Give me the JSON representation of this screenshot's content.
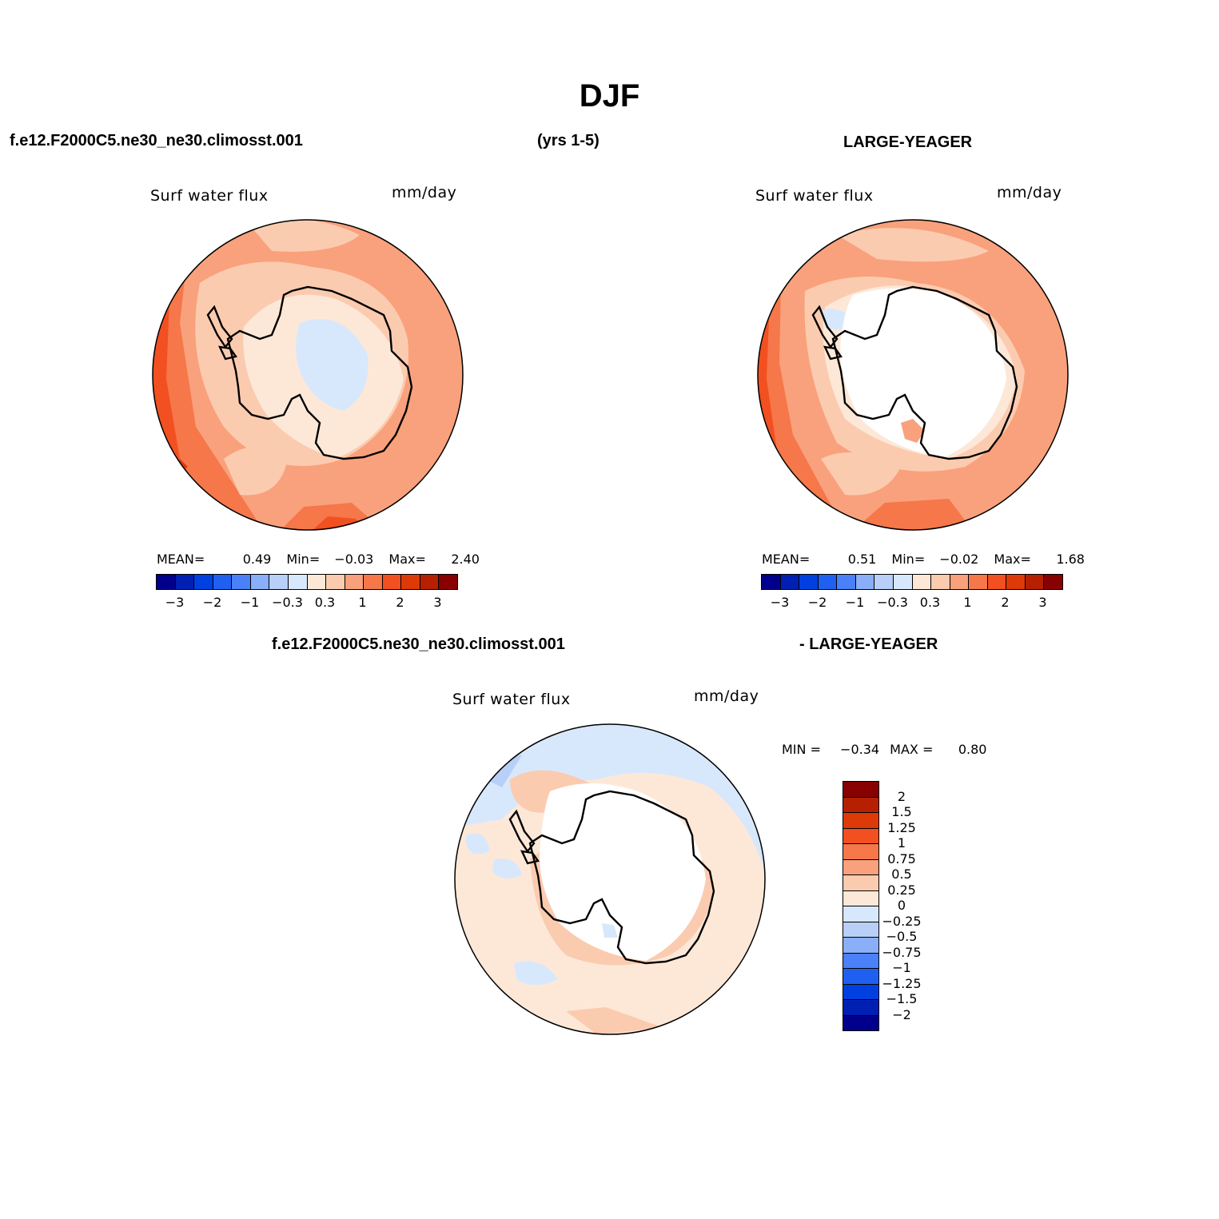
{
  "title": "DJF",
  "case_name": "f.e12.F2000C5.ne30_ne30.climosst.001",
  "years": "(yrs 1-5)",
  "obs_name": "LARGE-YEAGER",
  "diff_case": "f.e12.F2000C5.ne30_ne30.climosst.001",
  "diff_obs": "- LARGE-YEAGER",
  "colors": {
    "levels": [
      "#00008c",
      "#0020b4",
      "#0040e0",
      "#2060f0",
      "#4a80f8",
      "#8aaff8",
      "#b8cff8",
      "#d8e8fc",
      "#fde8d8",
      "#fbcbb0",
      "#f9a17c",
      "#f5774a",
      "#f25020",
      "#de3a08",
      "#b62000",
      "#880000"
    ],
    "diff_levels": [
      "#880000",
      "#b62000",
      "#de3a08",
      "#f25020",
      "#f5774a",
      "#f9a17c",
      "#fbcbb0",
      "#fde8d8",
      "#d8e8fc",
      "#b8cff8",
      "#8aaff8",
      "#4a80f8",
      "#2060f0",
      "#0040e0",
      "#0020b4",
      "#00008c"
    ]
  },
  "panels": [
    {
      "name": "Surf  water  flux",
      "units": "mm/day",
      "mean_label": "MEAN=",
      "mean": "0.49",
      "min_label": "Min=",
      "min": "−0.03",
      "max_label": "Max=",
      "max": "2.40",
      "ticks": [
        "−3",
        "−2",
        "−1",
        "−0.3",
        "0.3",
        "1",
        "2",
        "3"
      ]
    },
    {
      "name": "Surf  water  flux",
      "units": "mm/day",
      "mean_label": "MEAN=",
      "mean": "0.51",
      "min_label": "Min=",
      "min": "−0.02",
      "max_label": "Max=",
      "max": "1.68",
      "ticks": [
        "−3",
        "−2",
        "−1",
        "−0.3",
        "0.3",
        "1",
        "2",
        "3"
      ]
    },
    {
      "name": "Surf  water  flux",
      "units": "mm/day",
      "min_label": "MIN =",
      "min": "−0.34",
      "max_label": "MAX =",
      "max": "0.80",
      "ticks": [
        "2",
        "1.5",
        "1.25",
        "1",
        "0.75",
        "0.5",
        "0.25",
        "0",
        "−0.25",
        "−0.5",
        "−0.75",
        "−1",
        "−1.25",
        "−1.5",
        "−2"
      ]
    }
  ],
  "chart_data": {
    "type": "heatmap",
    "title": "DJF",
    "variable": "Surf water flux",
    "units": "mm/day",
    "season": "DJF",
    "maps": [
      {
        "label": "f.e12.F2000C5.ne30_ne30.climosst.001 (yrs 1-5)",
        "mean": 0.49,
        "min": -0.03,
        "max": 2.4,
        "contour_levels": [
          -3,
          -2.5,
          -2,
          -1.5,
          -1,
          -0.5,
          -0.3,
          0,
          0.3,
          0.5,
          1,
          1.5,
          2,
          2.5,
          3
        ]
      },
      {
        "label": "LARGE-YEAGER",
        "mean": 0.51,
        "min": -0.02,
        "max": 1.68,
        "contour_levels": [
          -3,
          -2.5,
          -2,
          -1.5,
          -1,
          -0.5,
          -0.3,
          0,
          0.3,
          0.5,
          1,
          1.5,
          2,
          2.5,
          3
        ]
      },
      {
        "label": "f.e12.F2000C5.ne30_ne30.climosst.001 - LARGE-YEAGER",
        "min": -0.34,
        "max": 0.8,
        "contour_levels": [
          -2,
          -1.5,
          -1.25,
          -1,
          -0.75,
          -0.5,
          -0.25,
          0,
          0.25,
          0.5,
          0.75,
          1,
          1.25,
          1.5,
          2
        ]
      }
    ]
  }
}
